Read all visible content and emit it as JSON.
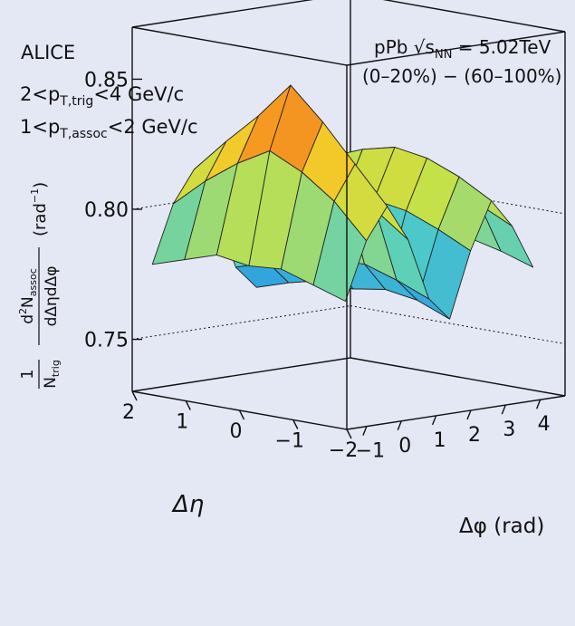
{
  "chart_data": {
    "type": "surface3d",
    "experiment": "ALICE",
    "system": "pPb √s",
    "system_sub": "NN",
    "system_energy": " = 5.02TeV",
    "subtraction": "(0–20%) − (60–100%)",
    "cut_trig": {
      "pre": "2<p",
      "sub": "T,trig",
      "post": "<4 GeV/c"
    },
    "cut_assoc": {
      "pre": "1<p",
      "sub": "T,assoc",
      "post": "<2 GeV/c"
    },
    "zlabel": "1/N_trig d²N_assoc/dΔηdΔφ (rad⁻¹)",
    "z_ticks": [
      "0.75",
      "0.80",
      "0.85"
    ],
    "zlim": [
      0.73,
      0.87
    ],
    "xlabel": "Δη",
    "x_ticks": [
      "−2",
      "−1",
      "0",
      "1",
      "2"
    ],
    "xlim": [
      -2,
      2
    ],
    "ylabel": "Δφ (rad)",
    "y_ticks": [
      "−1",
      "0",
      "1",
      "2",
      "3",
      "4"
    ],
    "ylim": [
      -1.5708,
      4.7124
    ],
    "surface": {
      "deta": [
        -1.8,
        -1.2,
        -0.6,
        0.0,
        0.6,
        1.2,
        1.8
      ],
      "dphi": [
        -1.3,
        -0.7,
        -0.1,
        0.5,
        1.1,
        1.7,
        2.3,
        2.9,
        3.5,
        4.1
      ],
      "z": [
        [
          0.778,
          0.8,
          0.812,
          0.798,
          0.774,
          0.765,
          0.79,
          0.808,
          0.797,
          0.78
        ],
        [
          0.782,
          0.813,
          0.826,
          0.807,
          0.779,
          0.77,
          0.796,
          0.815,
          0.803,
          0.784
        ],
        [
          0.786,
          0.822,
          0.84,
          0.815,
          0.783,
          0.772,
          0.801,
          0.82,
          0.806,
          0.787
        ],
        [
          0.785,
          0.828,
          0.852,
          0.818,
          0.782,
          0.77,
          0.803,
          0.822,
          0.808,
          0.786
        ],
        [
          0.787,
          0.821,
          0.838,
          0.812,
          0.78,
          0.771,
          0.8,
          0.819,
          0.805,
          0.786
        ],
        [
          0.783,
          0.812,
          0.826,
          0.805,
          0.777,
          0.768,
          0.795,
          0.814,
          0.801,
          0.783
        ],
        [
          0.779,
          0.801,
          0.813,
          0.797,
          0.773,
          0.764,
          0.789,
          0.807,
          0.796,
          0.779
        ]
      ]
    }
  }
}
